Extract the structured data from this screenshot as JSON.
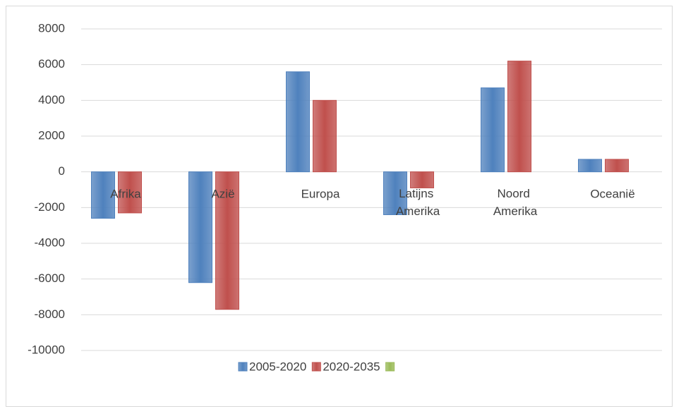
{
  "chart_data": {
    "type": "bar",
    "categories": [
      "Afrika",
      "Azië",
      "Europa",
      "Latijns Amerika",
      "Noord Amerika",
      "Oceanië"
    ],
    "series": [
      {
        "name": "2005-2020",
        "color": "#4f81bd",
        "values": [
          -2600,
          -6200,
          5600,
          -2400,
          4700,
          700
        ]
      },
      {
        "name": "2020-2035",
        "color": "#c0504d",
        "values": [
          -2300,
          -7700,
          4000,
          -900,
          6200,
          700
        ]
      },
      {
        "name": null,
        "color": "#9bbb59",
        "values": [
          null,
          null,
          null,
          null,
          null,
          null
        ]
      }
    ],
    "ylim": [
      -10000,
      8000
    ],
    "yticks": [
      -10000,
      -8000,
      -6000,
      -4000,
      -2000,
      0,
      2000,
      4000,
      6000,
      8000
    ],
    "grid": true,
    "legend": "bottom"
  }
}
